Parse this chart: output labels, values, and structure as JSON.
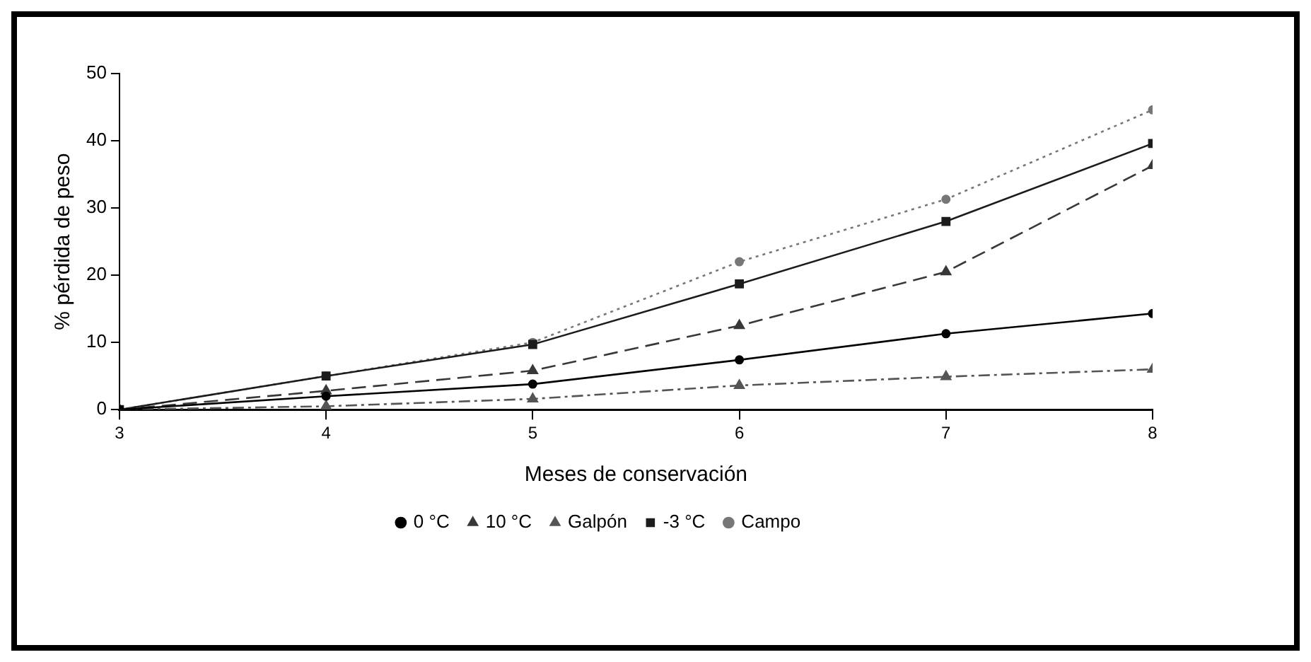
{
  "chart_data": {
    "type": "line",
    "xlabel": "Meses de conservación",
    "ylabel": "% pérdida de peso",
    "x": [
      3,
      4,
      5,
      6,
      7,
      8
    ],
    "xlim": [
      3,
      8
    ],
    "xticks": [
      3,
      4,
      5,
      6,
      7,
      8
    ],
    "ylim": [
      0,
      50
    ],
    "yticks": [
      0,
      10,
      20,
      30,
      40,
      50
    ],
    "grid": false,
    "legend": "bottom",
    "series": [
      {
        "name": "0 °C",
        "color": "#000000",
        "marker": "circle",
        "line_style": "solid",
        "values": [
          0,
          2,
          3.8,
          7.4,
          11.3,
          14.3
        ]
      },
      {
        "name": "10 °C",
        "color": "#383838",
        "marker": "triangle",
        "line_style": "dashed",
        "values": [
          0,
          2.8,
          5.8,
          12.5,
          20.5,
          36.3
        ]
      },
      {
        "name": "Galpón",
        "color": "#555555",
        "marker": "triangle",
        "line_style": "dashdot",
        "values": [
          0,
          0.5,
          1.6,
          3.6,
          4.9,
          6
        ]
      },
      {
        "name": "-3 °C",
        "color": "#1c1c1c",
        "marker": "square",
        "line_style": "solid",
        "values": [
          0,
          5,
          9.7,
          18.7,
          28,
          39.6
        ]
      },
      {
        "name": "Campo",
        "color": "#777777",
        "marker": "circle",
        "line_style": "dotted",
        "values": [
          0,
          5,
          10,
          22,
          31.3,
          44.6
        ]
      }
    ]
  }
}
